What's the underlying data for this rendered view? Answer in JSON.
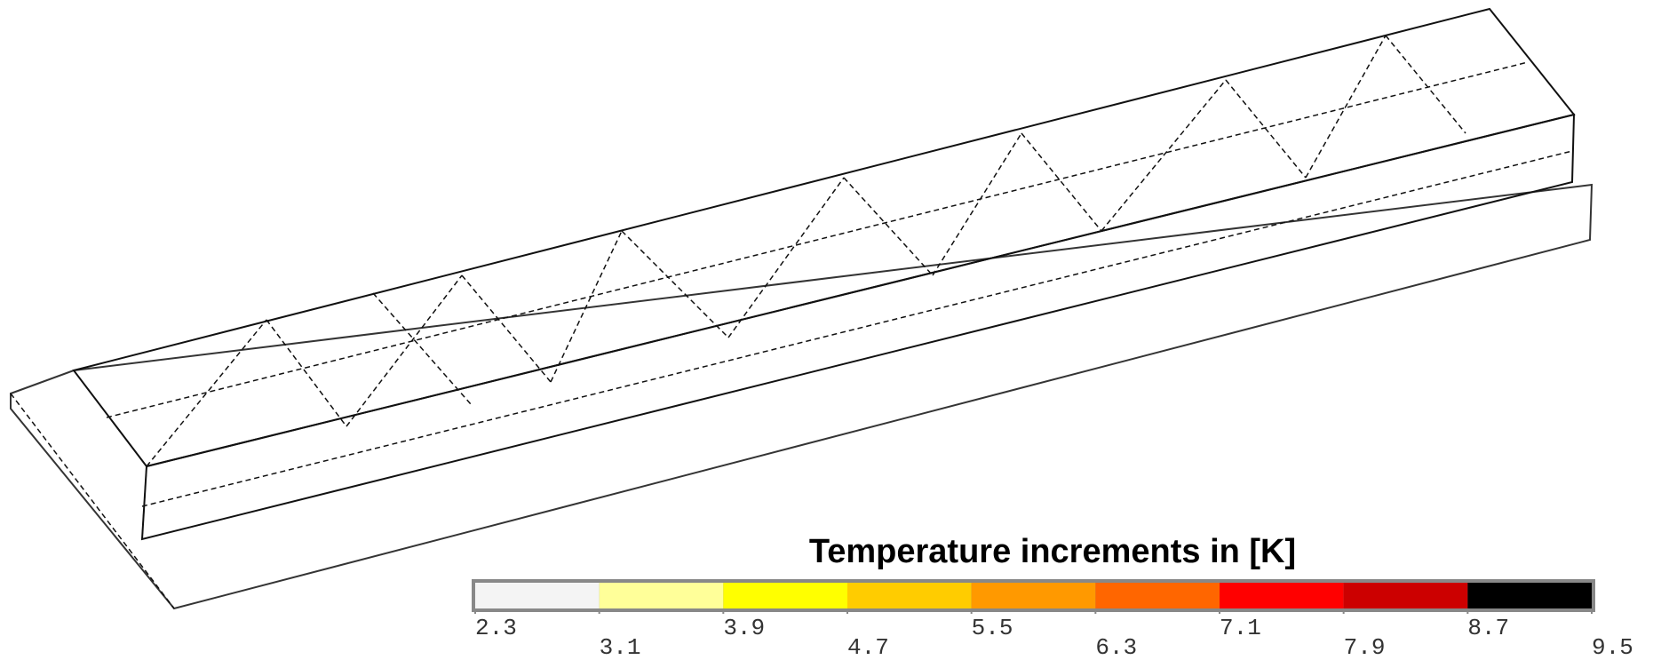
{
  "legend": {
    "title": "Temperature increments in [K]",
    "ticks": [
      2.3,
      3.1,
      3.9,
      4.7,
      5.5,
      6.3,
      7.1,
      7.9,
      8.7,
      9.5
    ],
    "colors": [
      "#f4f4f4",
      "#ffff99",
      "#ffff00",
      "#ffcc00",
      "#ff9900",
      "#ff6600",
      "#ff0000",
      "#cc0000",
      "#000000"
    ]
  }
}
